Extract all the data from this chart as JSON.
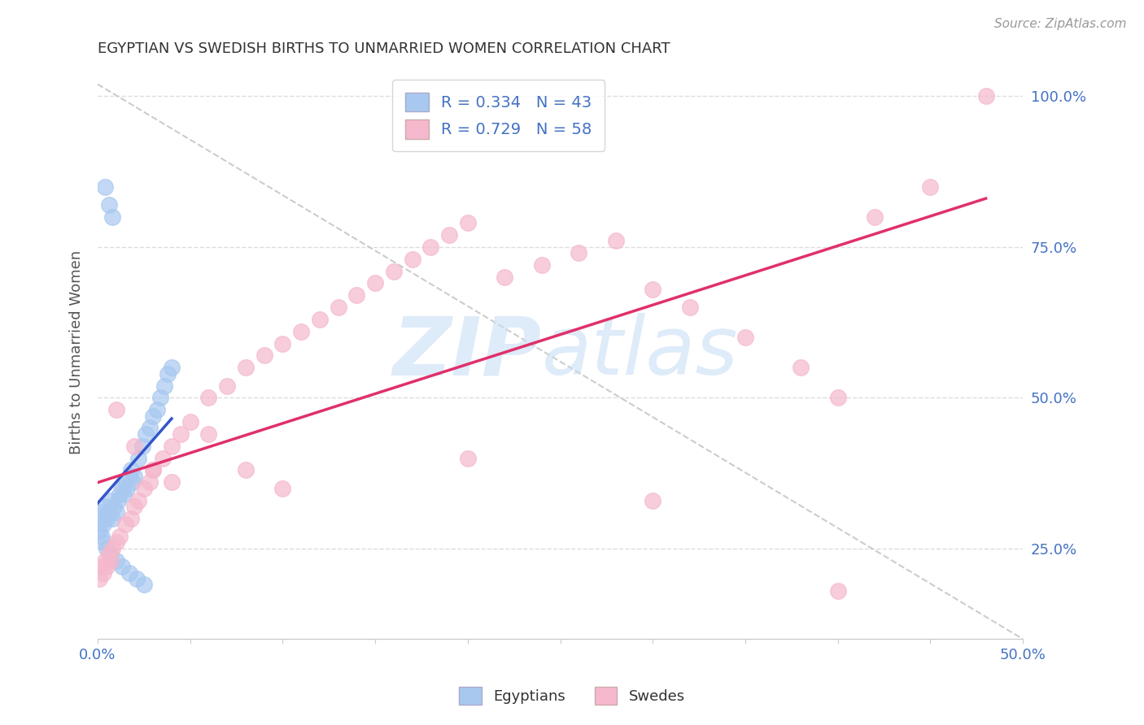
{
  "title": "EGYPTIAN VS SWEDISH BIRTHS TO UNMARRIED WOMEN CORRELATION CHART",
  "source": "Source: ZipAtlas.com",
  "ylabel": "Births to Unmarried Women",
  "legend_label1": "R = 0.334   N = 43",
  "legend_label2": "R = 0.729   N = 58",
  "legend_label_egyptians": "Egyptians",
  "legend_label_swedes": "Swedes",
  "color_egyptian": "#a8c8f0",
  "color_swedish": "#f5b8cc",
  "color_regline_egyptian": "#3355cc",
  "color_regline_swedish": "#e0306a",
  "background_color": "#ffffff",
  "watermark_text": "ZIPatlas",
  "watermark_color": "#ddeeff",
  "xlim": [
    0.0,
    0.5
  ],
  "ylim": [
    0.1,
    1.05
  ],
  "right_yticks": [
    0.25,
    0.5,
    0.75,
    1.0
  ],
  "right_yticklabels": [
    "25.0%",
    "50.0%",
    "75.0%",
    "100.0%"
  ],
  "xtick_left_label": "0.0%",
  "xtick_right_label": "50.0%",
  "egyptian_x": [
    0.001,
    0.002,
    0.003,
    0.004,
    0.005,
    0.006,
    0.007,
    0.008,
    0.009,
    0.01,
    0.011,
    0.012,
    0.013,
    0.014,
    0.015,
    0.016,
    0.017,
    0.018,
    0.019,
    0.02,
    0.022,
    0.024,
    0.026,
    0.028,
    0.03,
    0.032,
    0.034,
    0.036,
    0.038,
    0.04,
    0.001,
    0.002,
    0.003,
    0.005,
    0.007,
    0.01,
    0.013,
    0.017,
    0.021,
    0.025,
    0.004,
    0.006,
    0.008
  ],
  "egyptian_y": [
    0.3,
    0.31,
    0.29,
    0.32,
    0.3,
    0.31,
    0.33,
    0.3,
    0.32,
    0.31,
    0.33,
    0.34,
    0.35,
    0.34,
    0.36,
    0.35,
    0.37,
    0.38,
    0.36,
    0.37,
    0.4,
    0.42,
    0.44,
    0.45,
    0.47,
    0.48,
    0.5,
    0.52,
    0.54,
    0.55,
    0.28,
    0.27,
    0.26,
    0.25,
    0.24,
    0.23,
    0.22,
    0.21,
    0.2,
    0.19,
    0.85,
    0.82,
    0.8
  ],
  "swedish_x": [
    0.001,
    0.002,
    0.003,
    0.004,
    0.005,
    0.006,
    0.007,
    0.008,
    0.01,
    0.012,
    0.015,
    0.018,
    0.02,
    0.022,
    0.025,
    0.028,
    0.03,
    0.035,
    0.04,
    0.045,
    0.05,
    0.06,
    0.07,
    0.08,
    0.09,
    0.1,
    0.11,
    0.12,
    0.13,
    0.14,
    0.15,
    0.16,
    0.17,
    0.18,
    0.19,
    0.2,
    0.22,
    0.24,
    0.26,
    0.28,
    0.3,
    0.32,
    0.35,
    0.38,
    0.4,
    0.42,
    0.45,
    0.48,
    0.01,
    0.02,
    0.03,
    0.04,
    0.06,
    0.08,
    0.1,
    0.2,
    0.3,
    0.4
  ],
  "swedish_y": [
    0.2,
    0.22,
    0.21,
    0.23,
    0.22,
    0.24,
    0.23,
    0.25,
    0.26,
    0.27,
    0.29,
    0.3,
    0.32,
    0.33,
    0.35,
    0.36,
    0.38,
    0.4,
    0.42,
    0.44,
    0.46,
    0.5,
    0.52,
    0.55,
    0.57,
    0.59,
    0.61,
    0.63,
    0.65,
    0.67,
    0.69,
    0.71,
    0.73,
    0.75,
    0.77,
    0.79,
    0.7,
    0.72,
    0.74,
    0.76,
    0.68,
    0.65,
    0.6,
    0.55,
    0.5,
    0.8,
    0.85,
    1.0,
    0.48,
    0.42,
    0.38,
    0.36,
    0.44,
    0.38,
    0.35,
    0.4,
    0.33,
    0.18
  ],
  "ref_line_x": [
    0.0,
    0.5
  ],
  "ref_line_y": [
    1.02,
    0.1
  ],
  "dashed_line_color": "#c0c0c0"
}
